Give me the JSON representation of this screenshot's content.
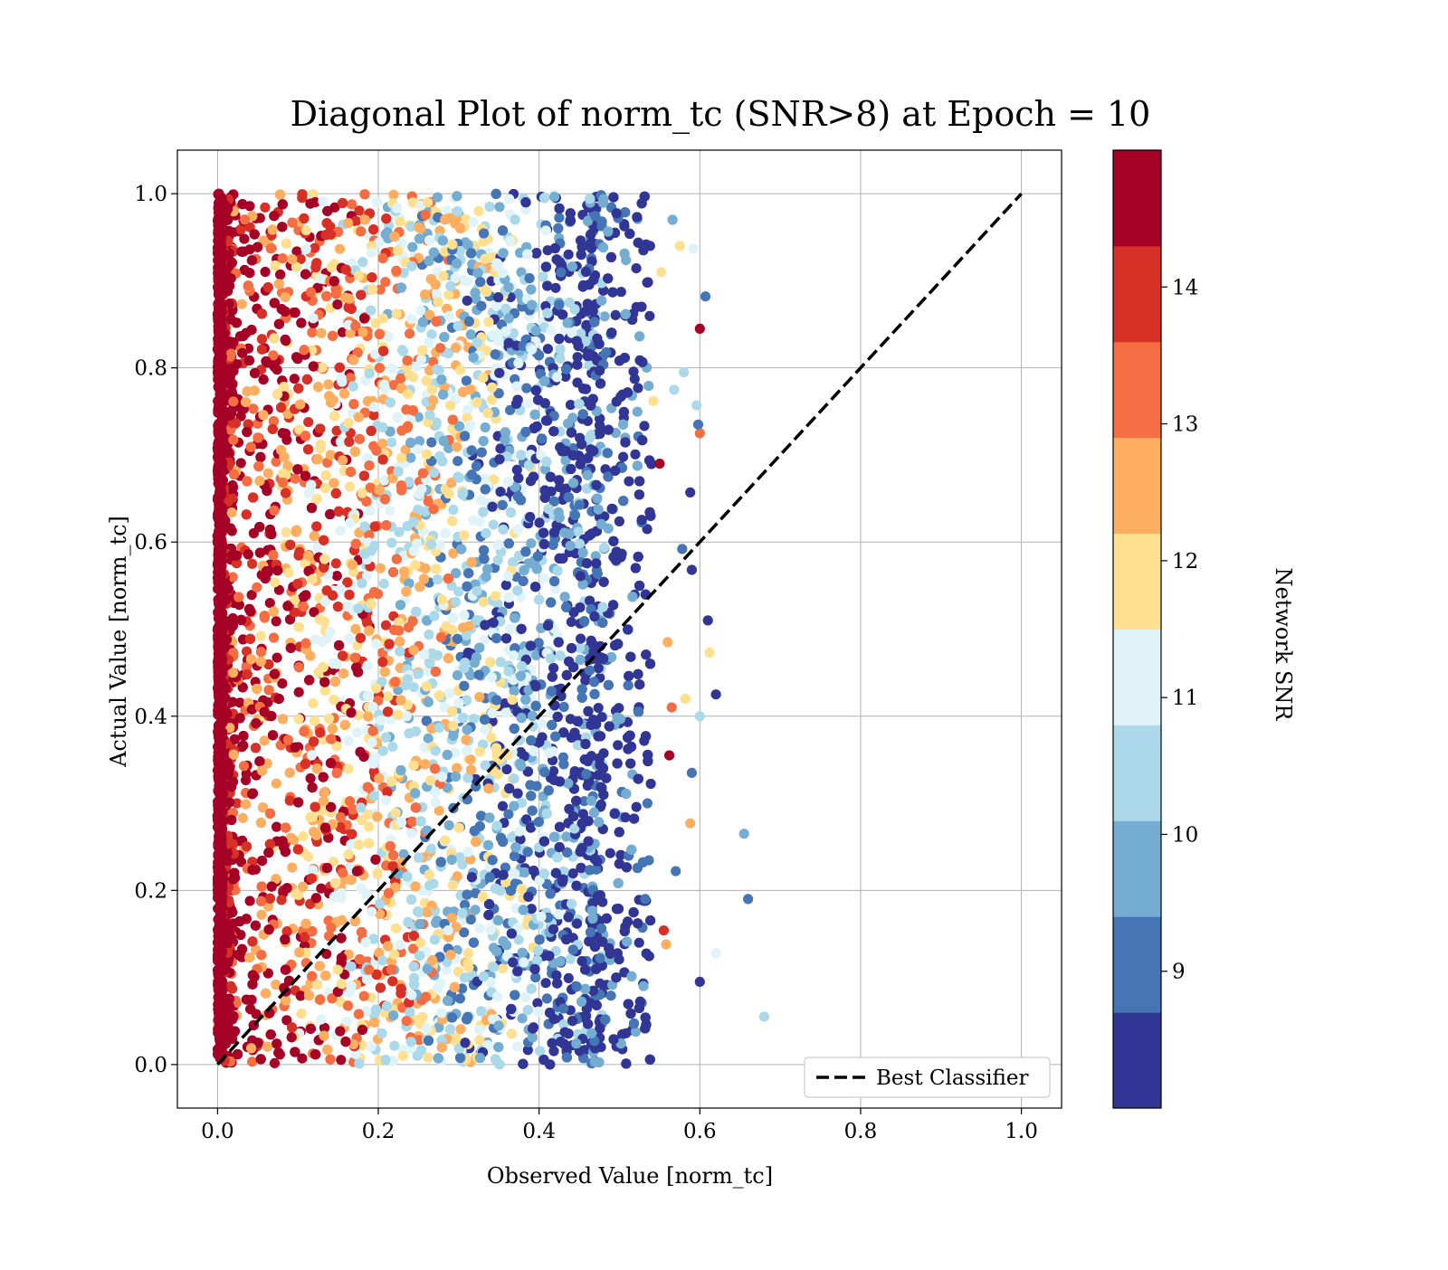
{
  "chart_data": {
    "type": "scatter",
    "title": "Diagonal Plot of norm_tc (SNR>8) at Epoch = 10",
    "xlabel": "Observed Value [norm_tc]",
    "ylabel": "Actual Value [norm_tc]",
    "xlim": [
      -0.05,
      1.05
    ],
    "ylim": [
      -0.05,
      1.05
    ],
    "xticks": [
      "0.0",
      "0.2",
      "0.4",
      "0.6",
      "0.8",
      "1.0"
    ],
    "yticks": [
      "0.0",
      "0.2",
      "0.4",
      "0.6",
      "0.8",
      "1.0"
    ],
    "grid": true,
    "legend": {
      "placement": "lower-right",
      "entries": [
        "Best Classifier"
      ]
    },
    "reference_line": {
      "name": "Best Classifier",
      "style": "dashed",
      "color": "#000000",
      "x": [
        0.0,
        1.0
      ],
      "y": [
        0.0,
        1.0
      ]
    },
    "colorbar": {
      "label": "Network SNR",
      "range": [
        8,
        15
      ],
      "ticks": [
        "9",
        "10",
        "11",
        "12",
        "13",
        "14"
      ],
      "tick_values": [
        9,
        10,
        11,
        12,
        13,
        14
      ],
      "colors": [
        "#313695",
        "#4575b4",
        "#74add1",
        "#abd9e9",
        "#e0f3f8",
        "#fee090",
        "#fdae61",
        "#f46d43",
        "#d73027",
        "#a50026"
      ]
    },
    "points_description": "Dense cloud of points with observed values 0.0–0.5 (sparse out to ~0.68) over actual values 0.0–1.0; low-observed points are high SNR (red), higher observed values mostly low SNR (blue)",
    "outliers": [
      {
        "x": 0.68,
        "y": 0.055,
        "snr": 10.6
      },
      {
        "x": 0.66,
        "y": 0.19,
        "snr": 9.2
      },
      {
        "x": 0.655,
        "y": 0.265,
        "snr": 9.8
      },
      {
        "x": 0.62,
        "y": 0.425,
        "snr": 8.3
      },
      {
        "x": 0.62,
        "y": 0.128,
        "snr": 11.3
      },
      {
        "x": 0.61,
        "y": 0.51,
        "snr": 8.2
      },
      {
        "x": 0.612,
        "y": 0.473,
        "snr": 11.9
      },
      {
        "x": 0.607,
        "y": 0.882,
        "snr": 9.0
      },
      {
        "x": 0.6,
        "y": 0.845,
        "snr": 14.6
      },
      {
        "x": 0.6,
        "y": 0.725,
        "snr": 13.5
      },
      {
        "x": 0.6,
        "y": 0.4,
        "snr": 10.6
      },
      {
        "x": 0.6,
        "y": 0.095,
        "snr": 8.3
      },
      {
        "x": 0.598,
        "y": 0.735,
        "snr": 9.0
      },
      {
        "x": 0.596,
        "y": 0.757,
        "snr": 10.6
      },
      {
        "x": 0.592,
        "y": 0.937,
        "snr": 11.3
      },
      {
        "x": 0.59,
        "y": 0.335,
        "snr": 9.0
      },
      {
        "x": 0.59,
        "y": 0.568,
        "snr": 8.3
      },
      {
        "x": 0.588,
        "y": 0.277,
        "snr": 12.6
      },
      {
        "x": 0.588,
        "y": 0.657,
        "snr": 8.3
      },
      {
        "x": 0.582,
        "y": 0.42,
        "snr": 12.0
      },
      {
        "x": 0.58,
        "y": 0.795,
        "snr": 10.6
      },
      {
        "x": 0.578,
        "y": 0.592,
        "snr": 9.0
      },
      {
        "x": 0.575,
        "y": 0.94,
        "snr": 12.0
      },
      {
        "x": 0.57,
        "y": 0.222,
        "snr": 9.0
      },
      {
        "x": 0.568,
        "y": 0.775,
        "snr": 10.6
      },
      {
        "x": 0.566,
        "y": 0.97,
        "snr": 10.0
      },
      {
        "x": 0.565,
        "y": 0.41,
        "snr": 13.5
      },
      {
        "x": 0.562,
        "y": 0.355,
        "snr": 14.6
      },
      {
        "x": 0.56,
        "y": 0.485,
        "snr": 12.6
      },
      {
        "x": 0.558,
        "y": 0.138,
        "snr": 12.6
      },
      {
        "x": 0.555,
        "y": 0.154,
        "snr": 14.2
      },
      {
        "x": 0.552,
        "y": 0.91,
        "snr": 12.0
      },
      {
        "x": 0.55,
        "y": 0.69,
        "snr": 14.6
      },
      {
        "x": 0.542,
        "y": 0.762,
        "snr": 12.0
      },
      {
        "x": 0.538,
        "y": 0.94,
        "snr": 8.3
      },
      {
        "x": 0.532,
        "y": 0.19,
        "snr": 9.0
      },
      {
        "x": 0.53,
        "y": 0.09,
        "snr": 9.8
      }
    ]
  }
}
